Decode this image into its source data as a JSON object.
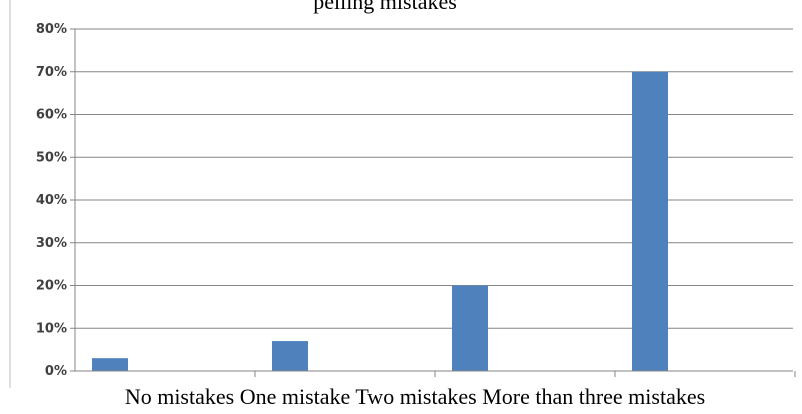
{
  "chart_data": {
    "type": "bar",
    "title_partial": "pelling mistakes",
    "categories": [
      "No mistakes",
      "One mistake",
      "Two mistakes",
      "More than three mistakes"
    ],
    "values": [
      3,
      7,
      20,
      70
    ],
    "ylim": [
      0,
      80
    ],
    "yticks": [
      "0%",
      "10%",
      "20%",
      "30%",
      "40%",
      "50%",
      "60%",
      "70%",
      "80%"
    ],
    "bar_color": "#4F81BD",
    "grid": true,
    "legend": "none"
  }
}
